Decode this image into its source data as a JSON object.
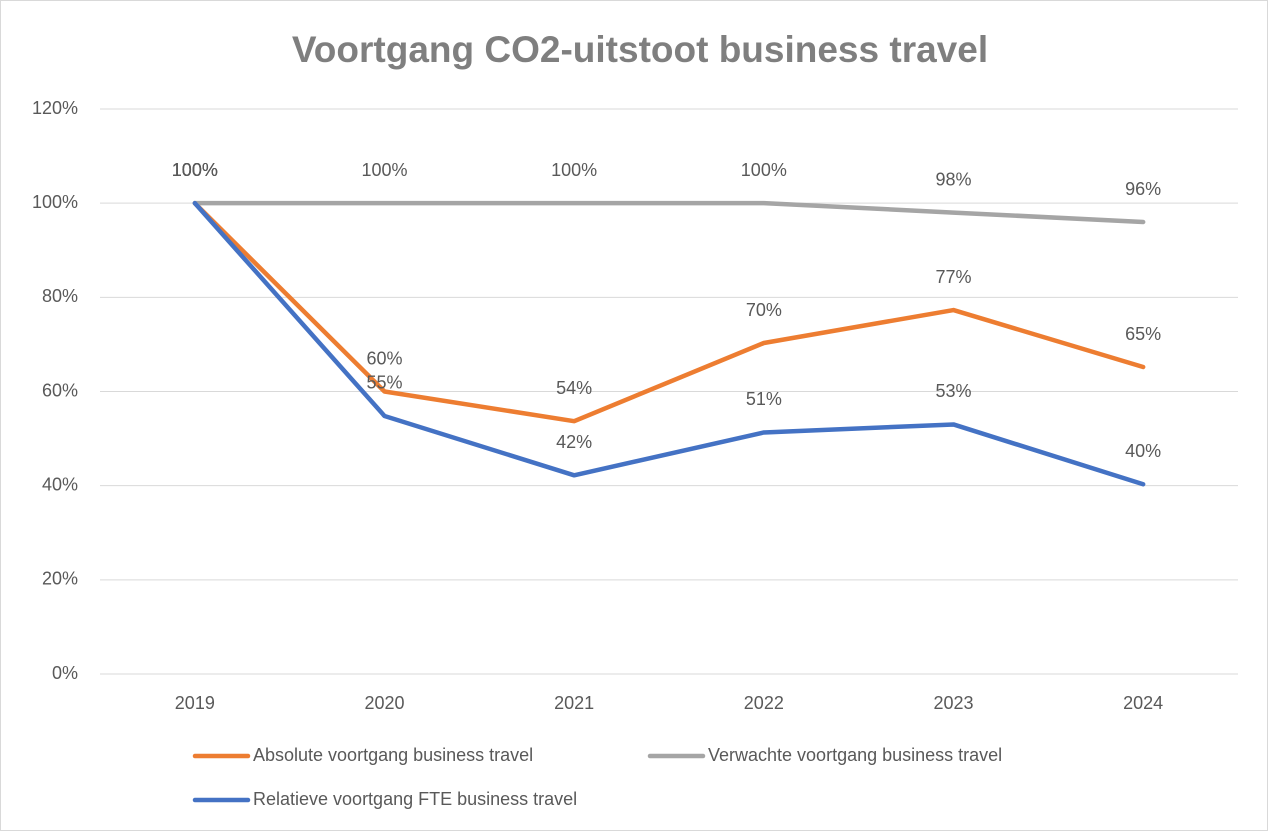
{
  "chart_data": {
    "type": "line",
    "title": "Voortgang CO2-uitstoot business travel",
    "categories": [
      "2019",
      "2020",
      "2021",
      "2022",
      "2023",
      "2024"
    ],
    "series": [
      {
        "name": "Absolute voortgang business travel",
        "color": "#ed7d31",
        "values": [
          100,
          60,
          53.7,
          70.3,
          77.3,
          65.2
        ],
        "value_labels": [
          "100%",
          "60%",
          "54%",
          "70%",
          "77%",
          "65%"
        ]
      },
      {
        "name": "Verwachte voortgang business travel",
        "color": "#a5a5a5",
        "values": [
          100,
          100,
          100,
          100,
          98,
          96
        ],
        "value_labels": [
          "100%",
          "100%",
          "100%",
          "100%",
          "98%",
          "96%"
        ]
      },
      {
        "name": "Relatieve voortgang FTE business travel",
        "color": "#4472c4",
        "values": [
          100,
          54.8,
          42.2,
          51.3,
          53,
          40.3
        ],
        "value_labels": [
          "100%",
          "55%",
          "42%",
          "51%",
          "53%",
          "40%"
        ]
      }
    ],
    "ylim": [
      0,
      120
    ],
    "yticks": [
      {
        "value": 0,
        "label": "0%"
      },
      {
        "value": 20,
        "label": "20%"
      },
      {
        "value": 40,
        "label": "40%"
      },
      {
        "value": 60,
        "label": "60%"
      },
      {
        "value": 80,
        "label": "80%"
      },
      {
        "value": 100,
        "label": "100%"
      },
      {
        "value": 120,
        "label": "120%"
      }
    ],
    "grid": true,
    "legend": "bottom"
  }
}
